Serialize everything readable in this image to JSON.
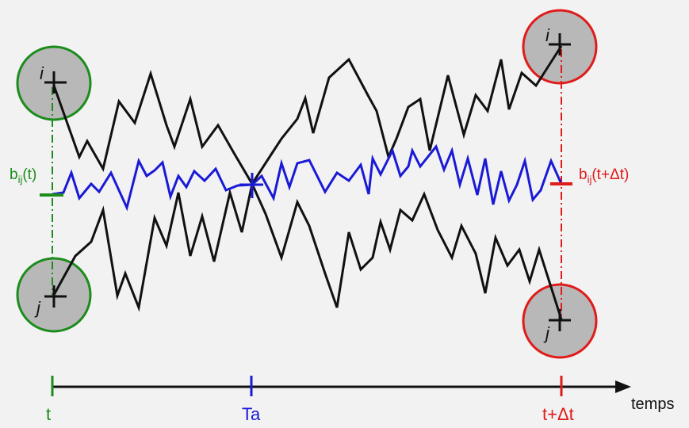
{
  "diagram": {
    "particle_i": "i",
    "particle_j": "j",
    "b_start": {
      "b": "b",
      "sub": "ij",
      "rest": "(t)"
    },
    "b_end": {
      "b": "b",
      "sub": "ij",
      "rest": "(t+Δt)"
    },
    "axis_label": "temps",
    "tick_t": "t",
    "tick_ta": "Ta",
    "tick_tdt": "t+Δt"
  },
  "colors": {
    "background": "#f2f2f2",
    "green": "#1c8c1c",
    "red": "#e01b1b",
    "blue": "#1a1ad6",
    "path": "#111111",
    "circle_fill": "#b8b8b8"
  }
}
